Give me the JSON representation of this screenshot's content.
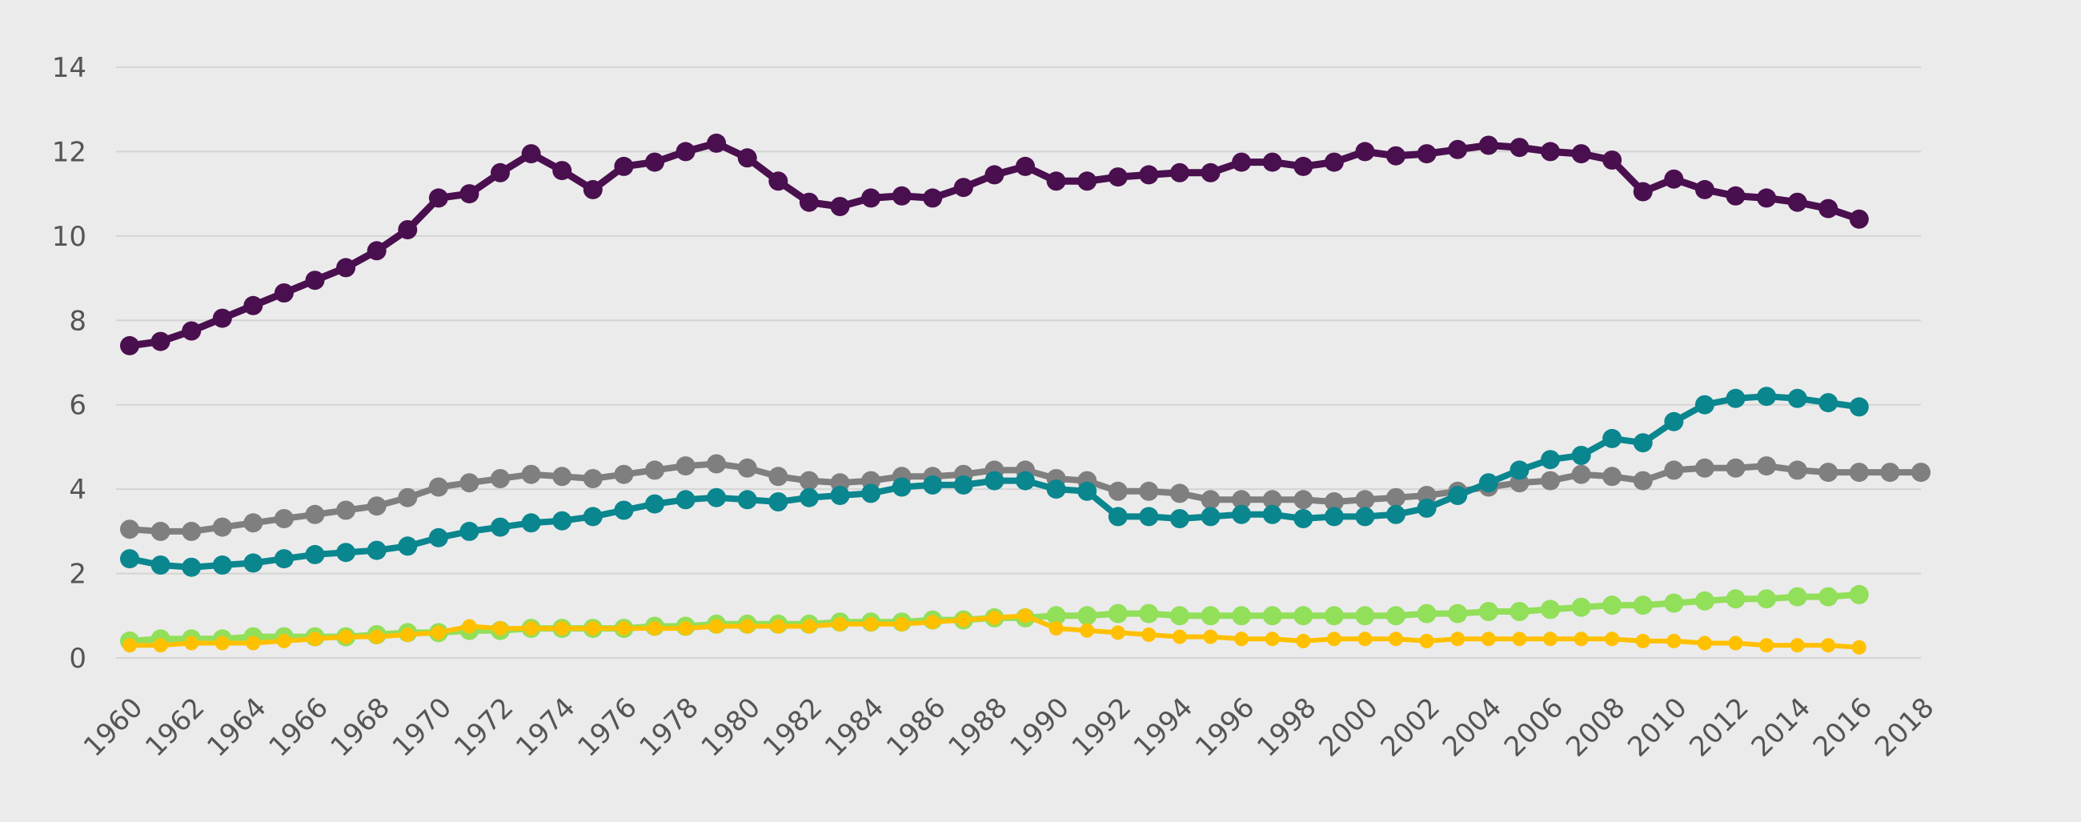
{
  "chart_data": {
    "type": "line",
    "title": "",
    "xlabel": "",
    "ylabel": "",
    "xlim": [
      1960,
      2018
    ],
    "ylim": [
      0,
      14
    ],
    "grid": true,
    "legend": "none",
    "x_ticks": [
      "1960",
      "1962",
      "1964",
      "1966",
      "1968",
      "1970",
      "1972",
      "1974",
      "1976",
      "1978",
      "1980",
      "1982",
      "1984",
      "1986",
      "1988",
      "1990",
      "1992",
      "1994",
      "1996",
      "1998",
      "2000",
      "2002",
      "2004",
      "2006",
      "2008",
      "2010",
      "2012",
      "2014",
      "2016",
      "2018"
    ],
    "y_ticks": [
      "0",
      "2",
      "4",
      "6",
      "8",
      "10",
      "12",
      "14"
    ],
    "series": [
      {
        "color": "#4a0f4f",
        "start_year": 1960,
        "values": [
          7.4,
          7.5,
          7.75,
          8.05,
          8.35,
          8.65,
          8.95,
          9.25,
          9.65,
          10.15,
          10.9,
          11.0,
          11.5,
          11.95,
          11.55,
          11.1,
          11.65,
          11.75,
          12.0,
          12.2,
          11.85,
          11.3,
          10.8,
          10.7,
          10.9,
          10.95,
          10.9,
          11.15,
          11.45,
          11.65,
          11.3,
          11.3,
          11.4,
          11.45,
          11.5,
          11.5,
          11.75,
          11.75,
          11.65,
          11.75,
          12.0,
          11.9,
          11.95,
          12.05,
          12.15,
          12.1,
          12.0,
          11.95,
          11.8,
          11.05,
          11.35,
          11.1,
          10.95,
          10.9,
          10.8,
          10.65,
          10.4
        ]
      },
      {
        "color": "#7f7f7f",
        "start_year": 1960,
        "values": [
          3.05,
          3.0,
          3.0,
          3.1,
          3.2,
          3.3,
          3.4,
          3.5,
          3.6,
          3.8,
          4.05,
          4.15,
          4.25,
          4.35,
          4.3,
          4.25,
          4.35,
          4.45,
          4.55,
          4.6,
          4.5,
          4.3,
          4.2,
          4.15,
          4.2,
          4.3,
          4.3,
          4.35,
          4.45,
          4.45,
          4.25,
          4.2,
          3.95,
          3.95,
          3.9,
          3.75,
          3.75,
          3.75,
          3.75,
          3.7,
          3.75,
          3.8,
          3.85,
          3.95,
          4.05,
          4.15,
          4.2,
          4.35,
          4.3,
          4.2,
          4.45,
          4.5,
          4.5,
          4.55,
          4.45,
          4.4,
          4.4,
          4.4,
          4.4
        ]
      },
      {
        "color": "#0a868f",
        "start_year": 1960,
        "values": [
          2.35,
          2.2,
          2.15,
          2.2,
          2.25,
          2.35,
          2.45,
          2.5,
          2.55,
          2.65,
          2.85,
          3.0,
          3.1,
          3.2,
          3.25,
          3.35,
          3.5,
          3.65,
          3.75,
          3.8,
          3.75,
          3.7,
          3.8,
          3.85,
          3.9,
          4.05,
          4.1,
          4.1,
          4.2,
          4.2,
          4.0,
          3.95,
          3.35,
          3.35,
          3.3,
          3.35,
          3.4,
          3.4,
          3.3,
          3.35,
          3.35,
          3.4,
          3.55,
          3.85,
          4.15,
          4.45,
          4.7,
          4.8,
          5.2,
          5.1,
          5.6,
          6.0,
          6.15,
          6.2,
          6.15,
          6.05,
          5.95
        ]
      },
      {
        "color": "#92df5a",
        "start_year": 1960,
        "values": [
          0.4,
          0.45,
          0.45,
          0.45,
          0.5,
          0.5,
          0.5,
          0.5,
          0.55,
          0.6,
          0.6,
          0.65,
          0.65,
          0.7,
          0.7,
          0.7,
          0.7,
          0.75,
          0.75,
          0.8,
          0.8,
          0.8,
          0.8,
          0.85,
          0.85,
          0.85,
          0.9,
          0.9,
          0.95,
          0.95,
          1.0,
          1.0,
          1.05,
          1.05,
          1.0,
          1.0,
          1.0,
          1.0,
          1.0,
          1.0,
          1.0,
          1.0,
          1.05,
          1.05,
          1.1,
          1.1,
          1.15,
          1.2,
          1.25,
          1.25,
          1.3,
          1.35,
          1.4,
          1.4,
          1.45,
          1.45,
          1.5
        ]
      },
      {
        "color": "#ffc000",
        "start_year": 1960,
        "values": [
          0.3,
          0.3,
          0.35,
          0.35,
          0.35,
          0.4,
          0.45,
          0.5,
          0.5,
          0.55,
          0.6,
          0.75,
          0.7,
          0.7,
          0.7,
          0.7,
          0.7,
          0.7,
          0.7,
          0.75,
          0.75,
          0.75,
          0.75,
          0.8,
          0.8,
          0.8,
          0.85,
          0.9,
          0.95,
          1.0,
          0.7,
          0.65,
          0.6,
          0.55,
          0.5,
          0.5,
          0.45,
          0.45,
          0.4,
          0.45,
          0.45,
          0.45,
          0.4,
          0.45,
          0.45,
          0.45,
          0.45,
          0.45,
          0.45,
          0.4,
          0.4,
          0.35,
          0.35,
          0.3,
          0.3,
          0.3,
          0.25
        ]
      }
    ]
  }
}
